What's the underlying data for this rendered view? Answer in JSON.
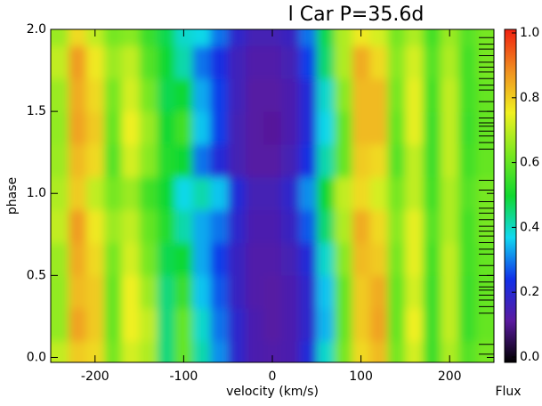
{
  "chart_data": {
    "type": "heatmap",
    "title": "l Car  P=35.6d",
    "x_label": "velocity (km/s)",
    "y_label": "phase",
    "colorbar_label": "Flux",
    "x": [
      -240,
      -220,
      -200,
      -180,
      -160,
      -140,
      -120,
      -100,
      -80,
      -60,
      -40,
      -20,
      0,
      20,
      40,
      60,
      80,
      100,
      120,
      140,
      160,
      180,
      200,
      220,
      240
    ],
    "y": [
      0,
      0.2,
      0.4,
      0.6,
      0.8,
      1.0,
      1.2,
      1.4,
      1.6,
      1.8,
      2.0
    ],
    "z": [
      [
        0.7,
        0.8,
        0.78,
        0.62,
        0.72,
        0.68,
        0.45,
        0.6,
        0.42,
        0.32,
        0.2,
        0.15,
        0.14,
        0.15,
        0.22,
        0.4,
        0.62,
        0.78,
        0.82,
        0.62,
        0.72,
        0.55,
        0.68,
        0.58,
        0.62
      ],
      [
        0.65,
        0.85,
        0.8,
        0.6,
        0.75,
        0.7,
        0.45,
        0.6,
        0.4,
        0.3,
        0.2,
        0.15,
        0.13,
        0.15,
        0.2,
        0.35,
        0.6,
        0.8,
        0.85,
        0.6,
        0.75,
        0.55,
        0.7,
        0.55,
        0.6
      ],
      [
        0.65,
        0.82,
        0.8,
        0.6,
        0.75,
        0.66,
        0.45,
        0.55,
        0.36,
        0.28,
        0.18,
        0.14,
        0.13,
        0.15,
        0.2,
        0.36,
        0.6,
        0.8,
        0.84,
        0.6,
        0.72,
        0.55,
        0.7,
        0.55,
        0.6
      ],
      [
        0.66,
        0.84,
        0.78,
        0.62,
        0.72,
        0.62,
        0.48,
        0.5,
        0.34,
        0.26,
        0.18,
        0.14,
        0.14,
        0.16,
        0.22,
        0.4,
        0.64,
        0.82,
        0.8,
        0.62,
        0.74,
        0.56,
        0.7,
        0.56,
        0.6
      ],
      [
        0.7,
        0.86,
        0.76,
        0.66,
        0.7,
        0.6,
        0.52,
        0.42,
        0.34,
        0.3,
        0.2,
        0.15,
        0.15,
        0.18,
        0.28,
        0.46,
        0.68,
        0.84,
        0.78,
        0.64,
        0.74,
        0.58,
        0.68,
        0.56,
        0.62
      ],
      [
        0.68,
        0.8,
        0.7,
        0.62,
        0.66,
        0.56,
        0.5,
        0.38,
        0.42,
        0.36,
        0.22,
        0.16,
        0.16,
        0.2,
        0.32,
        0.5,
        0.7,
        0.78,
        0.72,
        0.62,
        0.7,
        0.56,
        0.68,
        0.58,
        0.62
      ],
      [
        0.66,
        0.82,
        0.78,
        0.58,
        0.72,
        0.64,
        0.52,
        0.5,
        0.3,
        0.22,
        0.16,
        0.13,
        0.13,
        0.16,
        0.24,
        0.42,
        0.6,
        0.8,
        0.78,
        0.58,
        0.7,
        0.55,
        0.7,
        0.56,
        0.6
      ],
      [
        0.65,
        0.85,
        0.8,
        0.6,
        0.75,
        0.66,
        0.5,
        0.56,
        0.36,
        0.26,
        0.16,
        0.13,
        0.12,
        0.15,
        0.22,
        0.38,
        0.6,
        0.82,
        0.82,
        0.6,
        0.74,
        0.55,
        0.7,
        0.55,
        0.6
      ],
      [
        0.66,
        0.84,
        0.78,
        0.62,
        0.72,
        0.62,
        0.48,
        0.5,
        0.34,
        0.26,
        0.17,
        0.13,
        0.13,
        0.15,
        0.22,
        0.4,
        0.64,
        0.82,
        0.82,
        0.62,
        0.74,
        0.56,
        0.7,
        0.56,
        0.6
      ],
      [
        0.7,
        0.86,
        0.76,
        0.66,
        0.7,
        0.58,
        0.5,
        0.42,
        0.3,
        0.24,
        0.17,
        0.14,
        0.14,
        0.16,
        0.26,
        0.46,
        0.68,
        0.84,
        0.78,
        0.64,
        0.72,
        0.58,
        0.68,
        0.56,
        0.62
      ],
      [
        0.66,
        0.78,
        0.7,
        0.62,
        0.64,
        0.55,
        0.48,
        0.4,
        0.38,
        0.3,
        0.2,
        0.16,
        0.16,
        0.18,
        0.3,
        0.48,
        0.68,
        0.76,
        0.72,
        0.62,
        0.68,
        0.56,
        0.66,
        0.58,
        0.62
      ]
    ],
    "colormap": [
      "#000000",
      "#5a1aa0",
      "#1030e8",
      "#10d8f0",
      "#10d830",
      "#7ae820",
      "#f0f020",
      "#f09020",
      "#f02010"
    ],
    "zlim": [
      0,
      1
    ],
    "zticks": [
      {
        "value": 0,
        "label": "0.0"
      },
      {
        "value": 0.2,
        "label": "0.2"
      },
      {
        "value": 0.4,
        "label": "0.4"
      },
      {
        "value": 0.6,
        "label": "0.6"
      },
      {
        "value": 0.8,
        "label": "0.8"
      },
      {
        "value": 1,
        "label": "1.0"
      }
    ],
    "xlim": [
      -250,
      250
    ],
    "xticks": [
      -200,
      -100,
      0,
      100,
      200
    ],
    "ylim": [
      -0.03,
      2.0
    ],
    "yticks": [
      {
        "value": 0,
        "label": "0.0"
      },
      {
        "value": 0.5,
        "label": "0.5"
      },
      {
        "value": 1,
        "label": "1.0"
      },
      {
        "value": 1.5,
        "label": "1.5"
      },
      {
        "value": 2,
        "label": "2.0"
      }
    ],
    "observed_phases": [
      0.02,
      0.08,
      0.27,
      0.31,
      0.35,
      0.38,
      0.41,
      0.43,
      0.46,
      0.5,
      0.56,
      0.63,
      0.66,
      0.7,
      0.74,
      0.77,
      0.8,
      0.84,
      0.88,
      0.91,
      0.95,
      1.02,
      1.08,
      1.27,
      1.31,
      1.35,
      1.38,
      1.41,
      1.43,
      1.46,
      1.5,
      1.56,
      1.63,
      1.66,
      1.7,
      1.74,
      1.77,
      1.8,
      1.84,
      1.88,
      1.91,
      1.95
    ]
  }
}
